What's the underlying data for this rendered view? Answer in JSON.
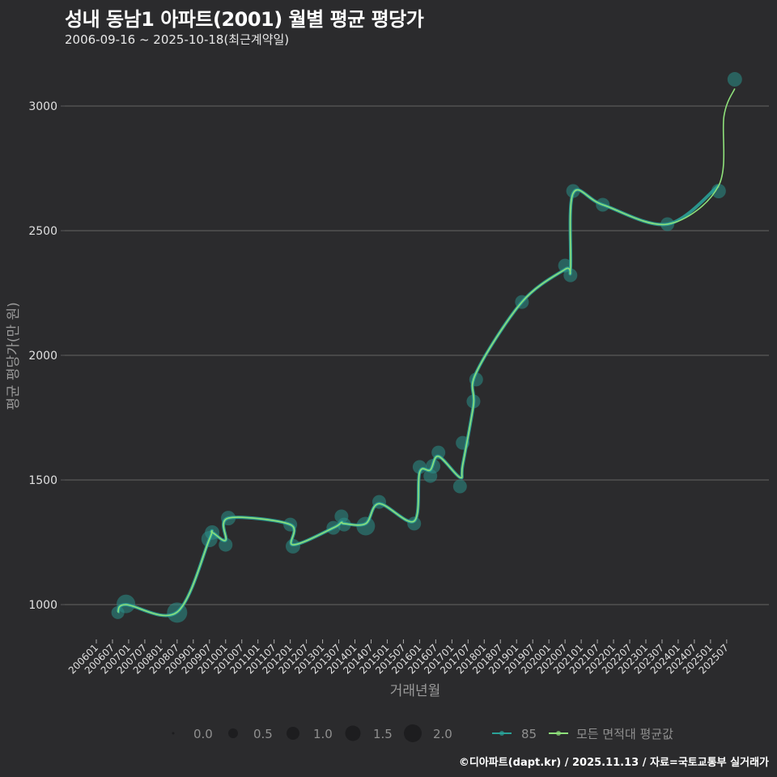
{
  "header": {
    "title": "성내 동남1 아파트(2001) 월별 평균 평당가",
    "subtitle": "2006-09-16 ~ 2025-10-18(최근계약일)"
  },
  "footer": {
    "credit": "©디아파트(dapt.kr) / 2025.11.13 / 자료=국토교통부 실거래가"
  },
  "colors": {
    "background": "#2b2b2d",
    "grid": "#5a5a5a",
    "series_85": "#2aa198",
    "series_avg": "#8ee07a",
    "point_fill": "#2a8f88"
  },
  "legend": {
    "size_title": "",
    "size_items": [
      "0.0",
      "0.5",
      "1.0",
      "1.5",
      "2.0"
    ],
    "series_items": [
      "85",
      "모든 면적대 평균값"
    ]
  },
  "chart_data": {
    "type": "line",
    "title": "성내 동남1 아파트(2001) 월별 평균 평당가",
    "subtitle": "2006-09-16 ~ 2025-10-18(최근계약일)",
    "xlabel": "거래년월",
    "ylabel": "평균 평당가(만 원)",
    "ylim": [
      820,
      3160
    ],
    "yticks": [
      1000,
      1500,
      2000,
      2500,
      3000
    ],
    "xticks": [
      "200601",
      "200607",
      "200701",
      "200707",
      "200801",
      "200807",
      "200901",
      "200907",
      "201001",
      "201007",
      "201101",
      "201107",
      "201201",
      "201207",
      "201301",
      "201307",
      "201401",
      "201407",
      "201501",
      "201507",
      "201601",
      "201607",
      "201701",
      "201707",
      "201801",
      "201807",
      "201901",
      "201907",
      "202001",
      "202007",
      "202101",
      "202107",
      "202201",
      "202207",
      "202301",
      "202307",
      "202401",
      "202407",
      "202501",
      "202507"
    ],
    "grid": true,
    "legend_position": "bottom",
    "series": [
      {
        "name": "85",
        "points": [
          {
            "x": "2006-09",
            "y": 968,
            "size": 1.0
          },
          {
            "x": "2006-12",
            "y": 1003,
            "size": 1.7
          },
          {
            "x": "2008-07",
            "y": 968,
            "size": 1.9
          },
          {
            "x": "2009-07",
            "y": 1263,
            "size": 1.4
          },
          {
            "x": "2009-08",
            "y": 1289,
            "size": 1.2
          },
          {
            "x": "2010-01",
            "y": 1240,
            "size": 1.1
          },
          {
            "x": "2010-02",
            "y": 1347,
            "size": 1.2
          },
          {
            "x": "2012-01",
            "y": 1321,
            "size": 1.1
          },
          {
            "x": "2012-02",
            "y": 1234,
            "size": 1.2
          },
          {
            "x": "2013-05",
            "y": 1308,
            "size": 1.1
          },
          {
            "x": "2013-08",
            "y": 1354,
            "size": 1.1
          },
          {
            "x": "2013-09",
            "y": 1321,
            "size": 1.1
          },
          {
            "x": "2014-05",
            "y": 1315,
            "size": 1.7
          },
          {
            "x": "2014-10",
            "y": 1412,
            "size": 1.1
          },
          {
            "x": "2015-11",
            "y": 1325,
            "size": 1.1
          },
          {
            "x": "2016-01",
            "y": 1552,
            "size": 1.1
          },
          {
            "x": "2016-05",
            "y": 1516,
            "size": 1.1
          },
          {
            "x": "2016-06",
            "y": 1555,
            "size": 1.2
          },
          {
            "x": "2016-08",
            "y": 1610,
            "size": 1.1
          },
          {
            "x": "2017-04",
            "y": 1474,
            "size": 1.1
          },
          {
            "x": "2017-05",
            "y": 1649,
            "size": 1.1
          },
          {
            "x": "2017-09",
            "y": 1815,
            "size": 1.1
          },
          {
            "x": "2017-10",
            "y": 1903,
            "size": 1.1
          },
          {
            "x": "2019-03",
            "y": 2214,
            "size": 1.1
          },
          {
            "x": "2020-07",
            "y": 2360,
            "size": 1.1
          },
          {
            "x": "2020-09",
            "y": 2321,
            "size": 1.1
          },
          {
            "x": "2020-10",
            "y": 2659,
            "size": 1.1
          },
          {
            "x": "2021-09",
            "y": 2604,
            "size": 1.1
          },
          {
            "x": "2023-09",
            "y": 2526,
            "size": 1.1
          },
          {
            "x": "2025-04",
            "y": 2659,
            "size": 1.2
          },
          {
            "x": "2025-10",
            "y": 3107,
            "size": 1.2
          }
        ]
      },
      {
        "name": "모든 면적대 평균값",
        "values_note": "smoothed line following the 85 series averages",
        "points": [
          {
            "x": "2006-09",
            "y": 968
          },
          {
            "x": "2006-12",
            "y": 1000
          },
          {
            "x": "2008-07",
            "y": 970
          },
          {
            "x": "2009-07",
            "y": 1263
          },
          {
            "x": "2009-08",
            "y": 1289
          },
          {
            "x": "2010-01",
            "y": 1258
          },
          {
            "x": "2010-02",
            "y": 1347
          },
          {
            "x": "2012-01",
            "y": 1321
          },
          {
            "x": "2012-02",
            "y": 1240
          },
          {
            "x": "2013-05",
            "y": 1308
          },
          {
            "x": "2013-08",
            "y": 1330
          },
          {
            "x": "2013-09",
            "y": 1325
          },
          {
            "x": "2014-05",
            "y": 1325
          },
          {
            "x": "2014-10",
            "y": 1405
          },
          {
            "x": "2015-11",
            "y": 1335
          },
          {
            "x": "2016-01",
            "y": 1530
          },
          {
            "x": "2016-05",
            "y": 1540
          },
          {
            "x": "2016-08",
            "y": 1595
          },
          {
            "x": "2017-04",
            "y": 1510
          },
          {
            "x": "2017-05",
            "y": 1560
          },
          {
            "x": "2017-09",
            "y": 1800
          },
          {
            "x": "2017-10",
            "y": 1930
          },
          {
            "x": "2019-03",
            "y": 2214
          },
          {
            "x": "2020-07",
            "y": 2345
          },
          {
            "x": "2020-09",
            "y": 2345
          },
          {
            "x": "2020-10",
            "y": 2650
          },
          {
            "x": "2021-09",
            "y": 2604
          },
          {
            "x": "2023-09",
            "y": 2526
          },
          {
            "x": "2025-04",
            "y": 2680
          },
          {
            "x": "2025-06",
            "y": 2960
          },
          {
            "x": "2025-10",
            "y": 3070
          }
        ]
      }
    ],
    "size_legend": [
      0.0,
      0.5,
      1.0,
      1.5,
      2.0
    ]
  }
}
